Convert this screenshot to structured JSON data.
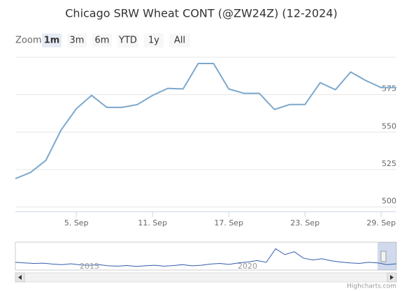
{
  "chart_data": {
    "type": "line",
    "title": "Chicago SRW Wheat CONT (@ZW24Z) (12-2024)",
    "zoom_label": "Zoom",
    "range_buttons": [
      "1m",
      "3m",
      "6m",
      "YTD",
      "1y",
      "All"
    ],
    "selected_button": 0,
    "categories": [
      null,
      null,
      null,
      null,
      "5. Sep",
      null,
      null,
      null,
      null,
      "11. Sep",
      null,
      null,
      null,
      null,
      "17. Sep",
      null,
      null,
      null,
      null,
      "23. Sep",
      null,
      null,
      null,
      null,
      "29. Sep",
      null
    ],
    "series": [
      {
        "name": "@ZW24Z",
        "color": "#7ca8cc",
        "values": [
          518.9,
          523.1,
          531.1,
          551.4,
          565.6,
          574.5,
          566.5,
          566.5,
          568.4,
          574.5,
          579.2,
          578.8,
          595.8,
          595.8,
          578.8,
          575.9,
          575.9,
          565.1,
          568.4,
          568.4,
          583,
          578.3,
          590.1,
          584.4,
          579.7,
          579.7
        ]
      }
    ],
    "ylim": [
      497,
      600
    ],
    "yticks": [
      500,
      525,
      550,
      575
    ],
    "grid": true,
    "navigator": {
      "labels": [
        "2015",
        "2020"
      ],
      "ylim": [
        400,
        1300
      ],
      "values": [
        640,
        620,
        600,
        610,
        580,
        560,
        590,
        550,
        540,
        560,
        520,
        510,
        530,
        500,
        520,
        540,
        510,
        530,
        560,
        520,
        540,
        580,
        600,
        570,
        620,
        650,
        700,
        640,
        1100,
        900,
        1000,
        780,
        720,
        760,
        690,
        650,
        620,
        600,
        640,
        620,
        560,
        590
      ]
    },
    "credits": "Highcharts.com"
  }
}
